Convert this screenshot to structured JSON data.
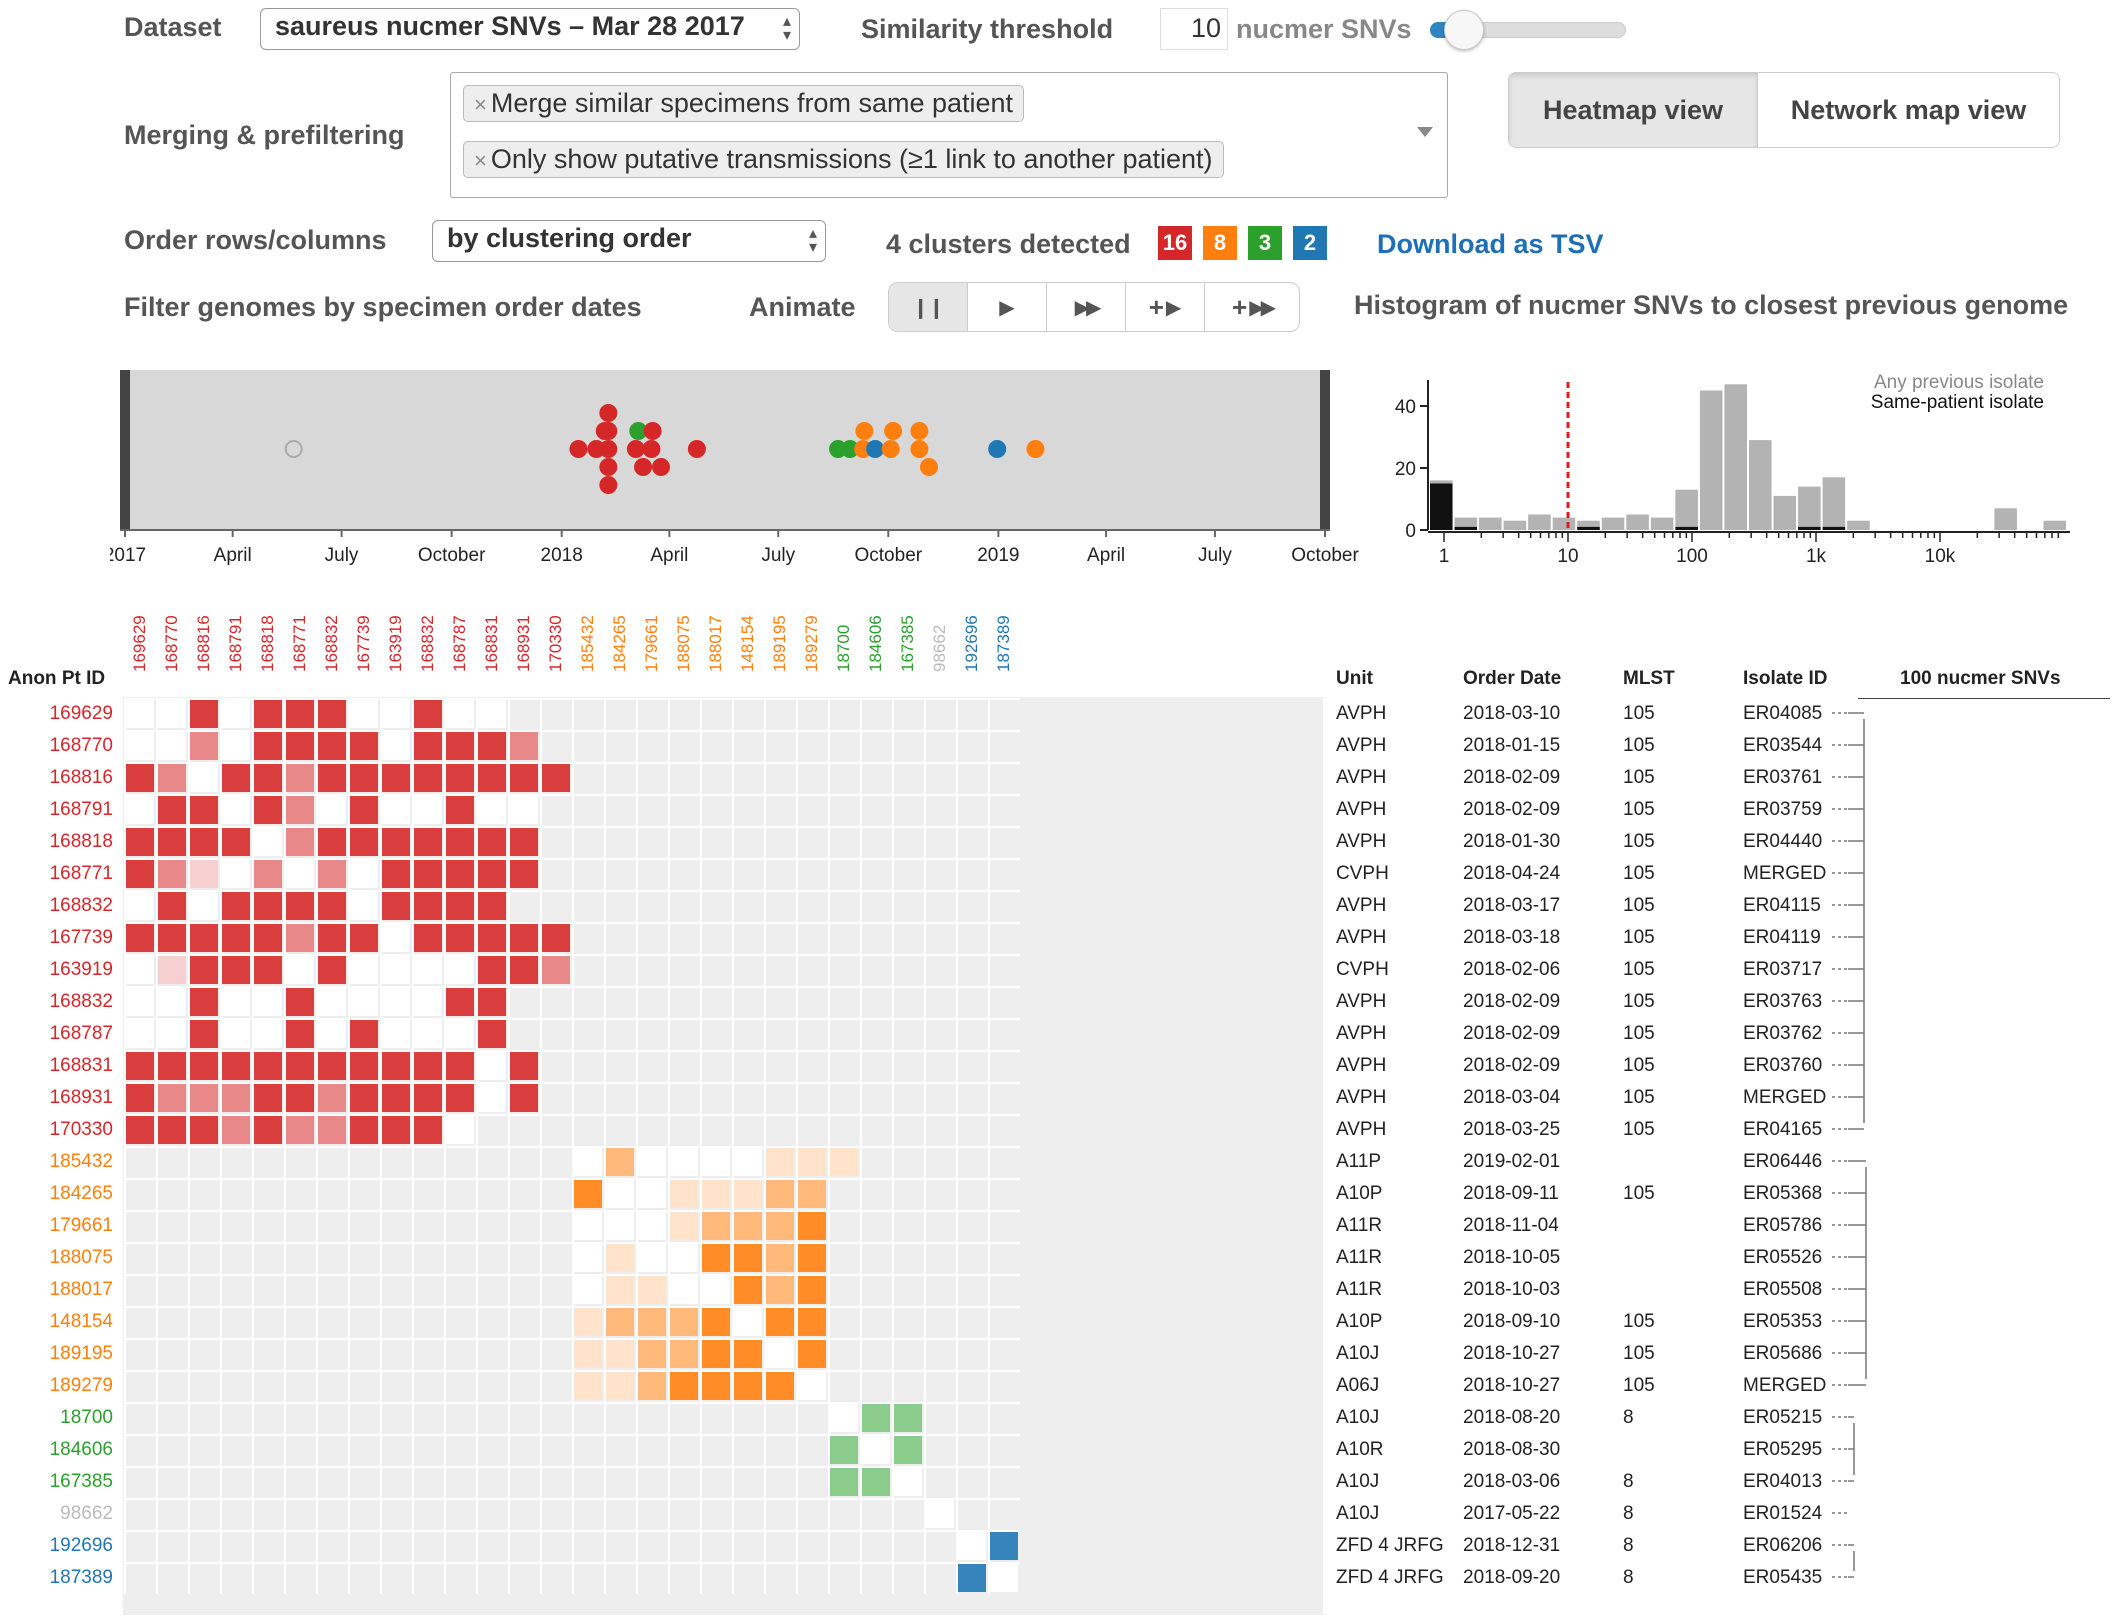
{
  "controls": {
    "dataset_label": "Dataset",
    "dataset_value": "saureus nucmer SNVs – Mar 28 2017",
    "threshold_label": "Similarity threshold",
    "threshold_value": "10",
    "threshold_unit": "nucmer SNVs",
    "merging_label": "Merging & prefiltering",
    "merge_tokens": [
      "Merge similar specimens from same patient",
      "Only show putative transmissions (≥1 link to another patient)"
    ],
    "order_label": "Order rows/columns",
    "order_value": "by clustering order",
    "clusters_text": "4 clusters detected",
    "cluster_badges": [
      {
        "count": "16",
        "color": "#d62728"
      },
      {
        "count": "8",
        "color": "#ff7f0e"
      },
      {
        "count": "3",
        "color": "#2ca02c"
      },
      {
        "count": "2",
        "color": "#1f77b4"
      }
    ],
    "download_label": "Download as TSV",
    "filter_label": "Filter genomes by specimen order dates",
    "animate_label": "Animate",
    "animate_buttons": [
      "pause-icon",
      "play-icon",
      "fast-forward-icon",
      "step-play-icon",
      "step-fast-forward-icon"
    ],
    "view_tabs": [
      "Heatmap view",
      "Network map view"
    ],
    "active_view": "Heatmap view"
  },
  "histogram": {
    "title": "Histogram of nucmer SNVs to closest previous genome",
    "legend_any": "Any previous isolate",
    "legend_same": "Same-patient isolate",
    "y_ticks": [
      "0",
      "20",
      "40"
    ],
    "x_ticks": [
      "1",
      "10",
      "100",
      "1k",
      "10k"
    ],
    "threshold_line_at": 10,
    "any_counts": [
      16,
      4,
      4,
      3,
      5,
      4,
      3,
      4,
      5,
      4,
      13,
      45,
      47,
      29,
      11,
      14,
      17,
      3,
      0,
      0,
      0,
      0,
      0,
      7,
      0,
      3
    ],
    "same_counts": [
      15,
      1,
      0,
      0,
      0,
      0,
      1,
      0,
      0,
      0,
      1,
      0,
      0,
      0,
      0,
      1,
      1,
      0,
      0,
      0,
      0,
      0,
      0,
      0,
      0,
      0
    ]
  },
  "timeline": {
    "axis_labels": [
      "2017",
      "April",
      "July",
      "October",
      "2018",
      "April",
      "July",
      "October",
      "2019",
      "April",
      "July",
      "October"
    ],
    "points": [
      {
        "date": "2017-05-22",
        "cluster": "none"
      },
      {
        "date": "2018-01-15",
        "cluster": "red"
      },
      {
        "date": "2018-01-30",
        "cluster": "red"
      },
      {
        "date": "2018-02-06",
        "cluster": "red"
      },
      {
        "date": "2018-02-09",
        "cluster": "red"
      },
      {
        "date": "2018-02-09",
        "cluster": "red"
      },
      {
        "date": "2018-02-09",
        "cluster": "red"
      },
      {
        "date": "2018-02-09",
        "cluster": "red"
      },
      {
        "date": "2018-02-09",
        "cluster": "red"
      },
      {
        "date": "2018-03-04",
        "cluster": "red"
      },
      {
        "date": "2018-03-06",
        "cluster": "green"
      },
      {
        "date": "2018-03-10",
        "cluster": "red"
      },
      {
        "date": "2018-03-17",
        "cluster": "red"
      },
      {
        "date": "2018-03-18",
        "cluster": "red"
      },
      {
        "date": "2018-03-25",
        "cluster": "red"
      },
      {
        "date": "2018-04-24",
        "cluster": "red"
      },
      {
        "date": "2018-08-20",
        "cluster": "green"
      },
      {
        "date": "2018-08-30",
        "cluster": "green"
      },
      {
        "date": "2018-09-10",
        "cluster": "orange"
      },
      {
        "date": "2018-09-11",
        "cluster": "orange"
      },
      {
        "date": "2018-09-20",
        "cluster": "blue"
      },
      {
        "date": "2018-10-03",
        "cluster": "orange"
      },
      {
        "date": "2018-10-05",
        "cluster": "orange"
      },
      {
        "date": "2018-10-27",
        "cluster": "orange"
      },
      {
        "date": "2018-10-27",
        "cluster": "orange"
      },
      {
        "date": "2018-11-04",
        "cluster": "orange"
      },
      {
        "date": "2018-12-31",
        "cluster": "blue"
      },
      {
        "date": "2019-02-01",
        "cluster": "orange"
      }
    ]
  },
  "heatmap": {
    "row_header": "Anon Pt ID",
    "table_headers": [
      "Unit",
      "Order Date",
      "MLST",
      "Isolate ID"
    ],
    "scale_label": "100 nucmer SNVs",
    "colors": {
      "red": "#d62728",
      "orange": "#ff7f0e",
      "green": "#2ca02c",
      "blue": "#1f77b4",
      "none": "#bbbbbb"
    },
    "rows": [
      {
        "id": "169629",
        "cluster": "red",
        "unit": "AVPH",
        "date": "2018-03-10",
        "mlst": "105",
        "isolate": "ER04085"
      },
      {
        "id": "168770",
        "cluster": "red",
        "unit": "AVPH",
        "date": "2018-01-15",
        "mlst": "105",
        "isolate": "ER03544"
      },
      {
        "id": "168816",
        "cluster": "red",
        "unit": "AVPH",
        "date": "2018-02-09",
        "mlst": "105",
        "isolate": "ER03761"
      },
      {
        "id": "168791",
        "cluster": "red",
        "unit": "AVPH",
        "date": "2018-02-09",
        "mlst": "105",
        "isolate": "ER03759"
      },
      {
        "id": "168818",
        "cluster": "red",
        "unit": "AVPH",
        "date": "2018-01-30",
        "mlst": "105",
        "isolate": "ER04440"
      },
      {
        "id": "168771",
        "cluster": "red",
        "unit": "CVPH",
        "date": "2018-04-24",
        "mlst": "105",
        "isolate": "MERGED"
      },
      {
        "id": "168832",
        "cluster": "red",
        "unit": "AVPH",
        "date": "2018-03-17",
        "mlst": "105",
        "isolate": "ER04115"
      },
      {
        "id": "167739",
        "cluster": "red",
        "unit": "AVPH",
        "date": "2018-03-18",
        "mlst": "105",
        "isolate": "ER04119"
      },
      {
        "id": "163919",
        "cluster": "red",
        "unit": "CVPH",
        "date": "2018-02-06",
        "mlst": "105",
        "isolate": "ER03717"
      },
      {
        "id": "168832",
        "cluster": "red",
        "unit": "AVPH",
        "date": "2018-02-09",
        "mlst": "105",
        "isolate": "ER03763"
      },
      {
        "id": "168787",
        "cluster": "red",
        "unit": "AVPH",
        "date": "2018-02-09",
        "mlst": "105",
        "isolate": "ER03762"
      },
      {
        "id": "168831",
        "cluster": "red",
        "unit": "AVPH",
        "date": "2018-02-09",
        "mlst": "105",
        "isolate": "ER03760"
      },
      {
        "id": "168931",
        "cluster": "red",
        "unit": "AVPH",
        "date": "2018-03-04",
        "mlst": "105",
        "isolate": "MERGED"
      },
      {
        "id": "170330",
        "cluster": "red",
        "unit": "AVPH",
        "date": "2018-03-25",
        "mlst": "105",
        "isolate": "ER04165"
      },
      {
        "id": "185432",
        "cluster": "orange",
        "unit": "A11P",
        "date": "2019-02-01",
        "mlst": "",
        "isolate": "ER06446"
      },
      {
        "id": "184265",
        "cluster": "orange",
        "unit": "A10P",
        "date": "2018-09-11",
        "mlst": "105",
        "isolate": "ER05368"
      },
      {
        "id": "179661",
        "cluster": "orange",
        "unit": "A11R",
        "date": "2018-11-04",
        "mlst": "",
        "isolate": "ER05786"
      },
      {
        "id": "188075",
        "cluster": "orange",
        "unit": "A11R",
        "date": "2018-10-05",
        "mlst": "",
        "isolate": "ER05526"
      },
      {
        "id": "188017",
        "cluster": "orange",
        "unit": "A11R",
        "date": "2018-10-03",
        "mlst": "",
        "isolate": "ER05508"
      },
      {
        "id": "148154",
        "cluster": "orange",
        "unit": "A10P",
        "date": "2018-09-10",
        "mlst": "105",
        "isolate": "ER05353"
      },
      {
        "id": "189195",
        "cluster": "orange",
        "unit": "A10J",
        "date": "2018-10-27",
        "mlst": "105",
        "isolate": "ER05686"
      },
      {
        "id": "189279",
        "cluster": "orange",
        "unit": "A06J",
        "date": "2018-10-27",
        "mlst": "105",
        "isolate": "MERGED"
      },
      {
        "id": "18700",
        "cluster": "green",
        "unit": "A10J",
        "date": "2018-08-20",
        "mlst": "8",
        "isolate": "ER05215"
      },
      {
        "id": "184606",
        "cluster": "green",
        "unit": "A10R",
        "date": "2018-08-30",
        "mlst": "",
        "isolate": "ER05295"
      },
      {
        "id": "167385",
        "cluster": "green",
        "unit": "A10J",
        "date": "2018-03-06",
        "mlst": "8",
        "isolate": "ER04013"
      },
      {
        "id": "98662",
        "cluster": "none",
        "unit": "A10J",
        "date": "2017-05-22",
        "mlst": "8",
        "isolate": "ER01524"
      },
      {
        "id": "192696",
        "cluster": "blue",
        "unit": "ZFD 4 JRFG",
        "date": "2018-12-31",
        "mlst": "8",
        "isolate": "ER06206"
      },
      {
        "id": "187389",
        "cluster": "blue",
        "unit": "ZFD 4 JRFG",
        "date": "2018-09-20",
        "mlst": "8",
        "isolate": "ER05435"
      }
    ],
    "cell_intensity_rows": [
      "x.3.333..3..",
      ".x2.3333.3332",
      "32x33233333333",
      ".33x32.3..3..",
      "3333x23333333",
      "321.2x2.33333",
      "x3.3333x3333",
      "33333233x33333",
      ".1333.3.x..332",
      "..3..3..x.33",
      "..3..3.3..x3",
      "33333333333x3",
      "32223323333x3",
      "3332322333x",
      "x2....111",
      "3x.11122",
      "..x12223",
      ".1.x3323",
      ".11.x323",
      "12223x33",
      "112233x3",
      "1123333x",
      "x22",
      "2x2",
      "22x",
      "x",
      "x3",
      "3x"
    ]
  }
}
